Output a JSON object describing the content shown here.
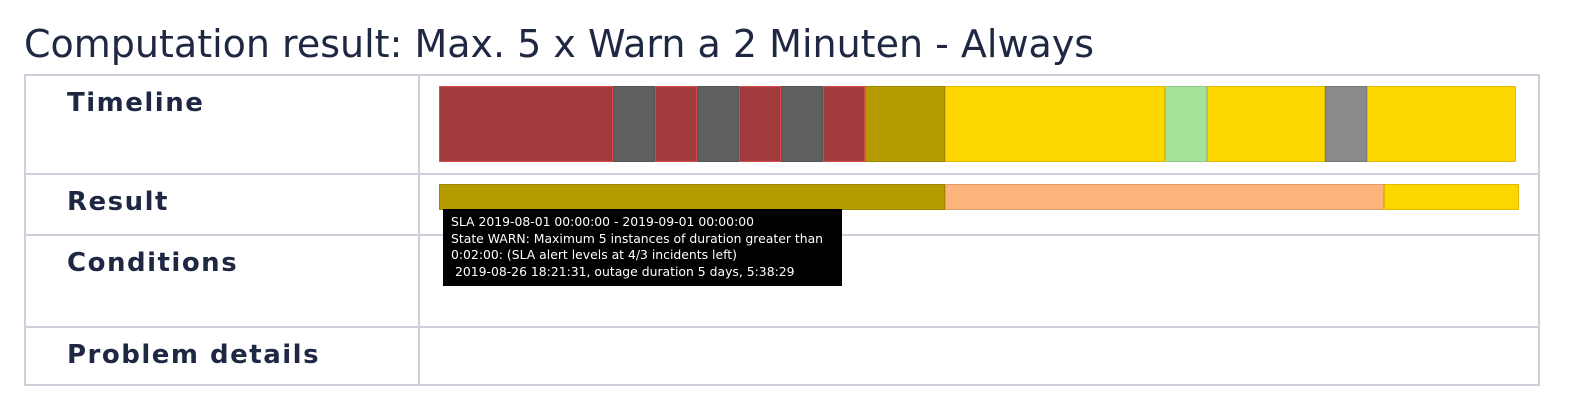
{
  "title": "Computation result: Max. 5 x Warn a 2 Minuten - Always",
  "rows": {
    "timeline": "Timeline",
    "result": "Result",
    "conditions": "Conditions",
    "problem_details": "Problem details"
  },
  "colors": {
    "crit": "#a13a3d",
    "crit_border": "#d9494d",
    "unknown_dark": "#606060",
    "warn_dark": "#b39b00",
    "warn": "#fed700",
    "ok": "#a8e39c",
    "unknown": "#8a8a8a",
    "orange": "#fbb47b",
    "grid_line": "#cfd0dc",
    "text": "#1e2843"
  },
  "timeline_segments": [
    {
      "state": "crit",
      "start": 0.0,
      "end": 0.1615
    },
    {
      "state": "unknown_dark",
      "start": 0.1615,
      "end": 0.2006
    },
    {
      "state": "crit",
      "start": 0.2006,
      "end": 0.2396
    },
    {
      "state": "unknown_dark",
      "start": 0.2396,
      "end": 0.2786
    },
    {
      "state": "crit",
      "start": 0.2786,
      "end": 0.3175
    },
    {
      "state": "unknown_dark",
      "start": 0.3175,
      "end": 0.3565
    },
    {
      "state": "crit",
      "start": 0.3565,
      "end": 0.3955
    },
    {
      "state": "warn_dark",
      "start": 0.3955,
      "end": 0.4698
    },
    {
      "state": "warn",
      "start": 0.4698,
      "end": 0.6741
    },
    {
      "state": "ok",
      "start": 0.6741,
      "end": 0.7131
    },
    {
      "state": "warn",
      "start": 0.7131,
      "end": 0.8226
    },
    {
      "state": "unknown",
      "start": 0.8226,
      "end": 0.8617
    },
    {
      "state": "warn",
      "start": 0.8617,
      "end": 1.0
    }
  ],
  "result_segments": [
    {
      "state": "warn_dark",
      "start": 0.0,
      "end": 0.4685
    },
    {
      "state": "orange",
      "start": 0.4685,
      "end": 0.875
    },
    {
      "state": "warn",
      "start": 0.875,
      "end": 1.0
    }
  ],
  "tooltip": {
    "line1": "SLA 2019-08-01 00:00:00 - 2019-09-01 00:00:00",
    "line2": "State WARN: Maximum 5 instances of duration greater than",
    "line3": "0:02:00: (SLA alert levels at 4/3 incidents left)",
    "line4": " 2019-08-26 18:21:31, outage duration 5 days, 5:38:29"
  }
}
